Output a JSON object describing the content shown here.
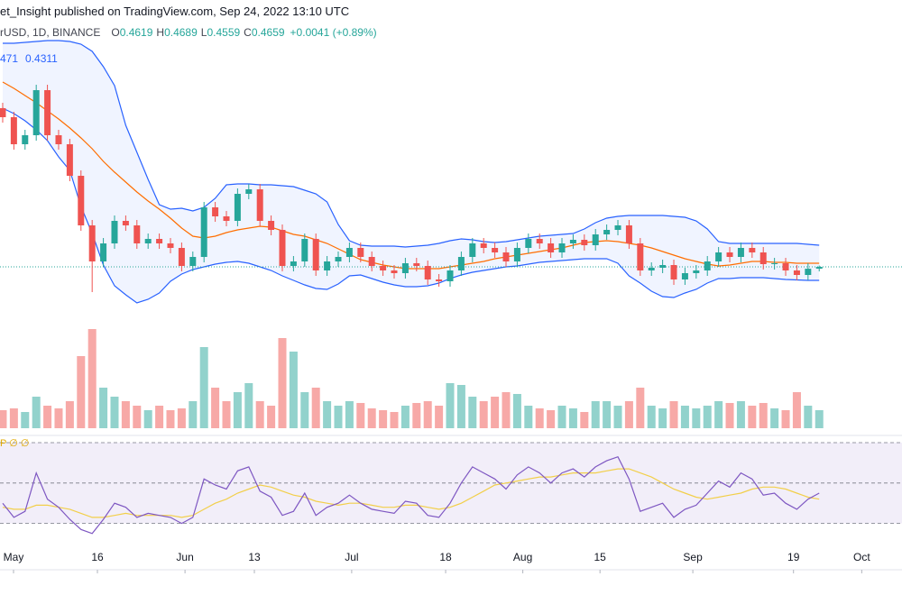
{
  "chart_data": {
    "type": "candlestick",
    "title": "et_Insight published on TradingView.com, Sep 24, 2022 13:10 UTC",
    "symbol": "rUSD, 1D, BINANCE",
    "ohlc_legend": [
      {
        "label": "O",
        "value": 0.4619
      },
      {
        "label": "H",
        "value": 0.4689
      },
      {
        "label": "L",
        "value": 0.4559
      },
      {
        "label": "C",
        "value": 0.4659
      }
    ],
    "change_label": "+0.0041 (+0.89%)",
    "bb_legend": [
      "471",
      "0.4311"
    ],
    "rsi_legend": "P ∅ ∅",
    "up_color": "#26a69a",
    "down_color": "#ef5350",
    "bb_color": "#2962ff",
    "basis_color": "#ff6d00",
    "rsi_color": "#7e57c2",
    "rsi_ma_color": "#f2cf4a",
    "open": [
      0.818,
      0.798,
      0.738,
      0.758,
      0.858,
      0.758,
      0.738,
      0.668,
      0.558,
      0.478,
      0.518,
      0.568,
      0.558,
      0.518,
      0.528,
      0.518,
      0.508,
      0.468,
      0.488,
      0.598,
      0.578,
      0.568,
      0.628,
      0.638,
      0.568,
      0.548,
      0.468,
      0.478,
      0.528,
      0.458,
      0.478,
      0.488,
      0.508,
      0.488,
      0.468,
      0.458,
      0.452,
      0.474,
      0.468,
      0.438,
      0.434,
      0.458,
      0.488,
      0.518,
      0.508,
      0.498,
      0.478,
      0.508,
      0.528,
      0.518,
      0.498,
      0.518,
      0.526,
      0.514,
      0.538,
      0.548,
      0.558,
      0.518,
      0.458,
      0.464,
      0.47,
      0.438,
      0.452,
      0.458,
      0.478,
      0.498,
      0.488,
      0.508,
      0.498,
      0.472,
      0.474,
      0.458,
      0.448,
      0.4619
    ],
    "high": [
      0.83,
      0.81,
      0.77,
      0.87,
      0.87,
      0.77,
      0.75,
      0.68,
      0.57,
      0.53,
      0.58,
      0.58,
      0.57,
      0.54,
      0.54,
      0.53,
      0.52,
      0.5,
      0.61,
      0.61,
      0.59,
      0.64,
      0.65,
      0.65,
      0.58,
      0.56,
      0.49,
      0.54,
      0.54,
      0.49,
      0.5,
      0.52,
      0.52,
      0.5,
      0.48,
      0.47,
      0.486,
      0.486,
      0.48,
      0.45,
      0.47,
      0.5,
      0.53,
      0.53,
      0.52,
      0.51,
      0.52,
      0.54,
      0.54,
      0.53,
      0.53,
      0.538,
      0.538,
      0.55,
      0.56,
      0.57,
      0.57,
      0.53,
      0.476,
      0.482,
      0.482,
      0.464,
      0.47,
      0.49,
      0.51,
      0.51,
      0.52,
      0.52,
      0.51,
      0.486,
      0.486,
      0.47,
      0.474,
      0.4689
    ],
    "low": [
      0.786,
      0.726,
      0.726,
      0.746,
      0.746,
      0.726,
      0.656,
      0.546,
      0.41,
      0.466,
      0.506,
      0.546,
      0.506,
      0.506,
      0.506,
      0.496,
      0.456,
      0.456,
      0.476,
      0.566,
      0.556,
      0.556,
      0.616,
      0.556,
      0.536,
      0.456,
      0.456,
      0.466,
      0.446,
      0.446,
      0.466,
      0.476,
      0.476,
      0.456,
      0.446,
      0.44,
      0.44,
      0.456,
      0.426,
      0.422,
      0.422,
      0.446,
      0.476,
      0.496,
      0.486,
      0.466,
      0.466,
      0.496,
      0.506,
      0.486,
      0.486,
      0.506,
      0.502,
      0.502,
      0.526,
      0.536,
      0.506,
      0.446,
      0.446,
      0.452,
      0.426,
      0.426,
      0.44,
      0.446,
      0.466,
      0.476,
      0.476,
      0.486,
      0.46,
      0.46,
      0.446,
      0.436,
      0.436,
      0.4559
    ],
    "close": [
      0.798,
      0.738,
      0.758,
      0.858,
      0.758,
      0.738,
      0.668,
      0.558,
      0.478,
      0.518,
      0.568,
      0.558,
      0.518,
      0.528,
      0.518,
      0.508,
      0.468,
      0.488,
      0.598,
      0.578,
      0.568,
      0.628,
      0.638,
      0.568,
      0.548,
      0.468,
      0.478,
      0.528,
      0.458,
      0.478,
      0.488,
      0.508,
      0.488,
      0.468,
      0.458,
      0.452,
      0.474,
      0.468,
      0.438,
      0.434,
      0.458,
      0.488,
      0.518,
      0.508,
      0.498,
      0.478,
      0.508,
      0.528,
      0.518,
      0.498,
      0.518,
      0.526,
      0.514,
      0.538,
      0.548,
      0.558,
      0.518,
      0.458,
      0.464,
      0.47,
      0.438,
      0.452,
      0.458,
      0.478,
      0.498,
      0.488,
      0.508,
      0.498,
      0.472,
      0.474,
      0.458,
      0.448,
      0.4619,
      0.4659
    ],
    "bb_upper": [
      0.962,
      0.962,
      0.964,
      0.966,
      0.968,
      0.968,
      0.966,
      0.96,
      0.944,
      0.91,
      0.868,
      0.78,
      0.72,
      0.66,
      0.604,
      0.594,
      0.596,
      0.59,
      0.598,
      0.618,
      0.648,
      0.65,
      0.65,
      0.648,
      0.648,
      0.646,
      0.644,
      0.636,
      0.628,
      0.61,
      0.56,
      0.524,
      0.514,
      0.512,
      0.512,
      0.512,
      0.51,
      0.512,
      0.514,
      0.518,
      0.524,
      0.528,
      0.526,
      0.522,
      0.52,
      0.522,
      0.526,
      0.53,
      0.534,
      0.536,
      0.538,
      0.54,
      0.55,
      0.564,
      0.574,
      0.578,
      0.58,
      0.58,
      0.58,
      0.58,
      0.578,
      0.576,
      0.568,
      0.55,
      0.522,
      0.518,
      0.518,
      0.518,
      0.518,
      0.518,
      0.518,
      0.518,
      0.516,
      0.514
    ],
    "bb_basis": [
      0.876,
      0.862,
      0.846,
      0.83,
      0.812,
      0.794,
      0.774,
      0.752,
      0.728,
      0.7,
      0.676,
      0.654,
      0.632,
      0.612,
      0.594,
      0.574,
      0.552,
      0.534,
      0.53,
      0.534,
      0.542,
      0.548,
      0.552,
      0.556,
      0.554,
      0.546,
      0.538,
      0.534,
      0.526,
      0.518,
      0.506,
      0.494,
      0.482,
      0.476,
      0.47,
      0.466,
      0.462,
      0.462,
      0.462,
      0.462,
      0.466,
      0.47,
      0.474,
      0.478,
      0.484,
      0.488,
      0.492,
      0.496,
      0.5,
      0.504,
      0.508,
      0.514,
      0.52,
      0.522,
      0.524,
      0.522,
      0.518,
      0.514,
      0.508,
      0.5,
      0.492,
      0.484,
      0.478,
      0.472,
      0.468,
      0.47,
      0.474,
      0.478,
      0.478,
      0.476,
      0.476,
      0.474,
      0.474,
      0.474
    ],
    "bb_lower": [
      0.818,
      0.806,
      0.79,
      0.77,
      0.746,
      0.71,
      0.68,
      0.6,
      0.54,
      0.47,
      0.424,
      0.404,
      0.386,
      0.394,
      0.408,
      0.434,
      0.45,
      0.46,
      0.466,
      0.472,
      0.476,
      0.478,
      0.474,
      0.466,
      0.458,
      0.446,
      0.436,
      0.426,
      0.418,
      0.416,
      0.428,
      0.446,
      0.448,
      0.44,
      0.432,
      0.426,
      0.422,
      0.422,
      0.424,
      0.43,
      0.44,
      0.448,
      0.454,
      0.458,
      0.462,
      0.466,
      0.468,
      0.472,
      0.476,
      0.478,
      0.48,
      0.482,
      0.484,
      0.484,
      0.484,
      0.474,
      0.446,
      0.43,
      0.412,
      0.4,
      0.398,
      0.408,
      0.416,
      0.43,
      0.44,
      0.44,
      0.442,
      0.442,
      0.442,
      0.44,
      0.438,
      0.437,
      0.436,
      0.436
    ],
    "ylim": [
      0.378,
      0.998
    ],
    "volume": [
      20,
      22,
      18,
      35,
      25,
      22,
      30,
      80,
      110,
      45,
      35,
      30,
      25,
      20,
      25,
      20,
      22,
      30,
      90,
      45,
      30,
      40,
      50,
      30,
      25,
      100,
      85,
      40,
      45,
      30,
      25,
      30,
      28,
      22,
      20,
      18,
      25,
      28,
      30,
      25,
      50,
      48,
      35,
      30,
      35,
      40,
      38,
      25,
      22,
      20,
      25,
      22,
      18,
      30,
      30,
      25,
      30,
      45,
      25,
      22,
      30,
      25,
      22,
      25,
      30,
      28,
      30,
      25,
      28,
      22,
      20,
      40,
      25,
      20
    ],
    "volume_ylim": [
      0,
      115
    ],
    "rsi": [
      40,
      33,
      36,
      55,
      42,
      38,
      32,
      27,
      25,
      32,
      40,
      38,
      33,
      35,
      34,
      33,
      30,
      33,
      52,
      49,
      47,
      56,
      58,
      46,
      43,
      34,
      36,
      45,
      34,
      38,
      40,
      44,
      40,
      37,
      36,
      35,
      41,
      40,
      34,
      33,
      40,
      50,
      58,
      55,
      52,
      47,
      54,
      58,
      55,
      50,
      55,
      57,
      53,
      58,
      61,
      63,
      52,
      36,
      38,
      40,
      33,
      37,
      39,
      45,
      51,
      48,
      55,
      52,
      44,
      45,
      40,
      37,
      42,
      45
    ],
    "rsi_ma": [
      38,
      37,
      37,
      39,
      39,
      38,
      37,
      35,
      33,
      33,
      34,
      35,
      34,
      34,
      34,
      34,
      33,
      34,
      37,
      40,
      42,
      45,
      47,
      49,
      48,
      46,
      44,
      43,
      41,
      40,
      39,
      40,
      40,
      39,
      38,
      38,
      39,
      39,
      38,
      37,
      38,
      40,
      43,
      46,
      49,
      50,
      51,
      52,
      53,
      53,
      54,
      55,
      55,
      55,
      56,
      57,
      57,
      55,
      53,
      50,
      47,
      45,
      43,
      42,
      43,
      44,
      45,
      47,
      48,
      48,
      47,
      45,
      43,
      42
    ],
    "rsi_ylim": [
      16,
      74
    ],
    "rsi_levels": [
      70,
      50,
      30
    ],
    "xlim": [
      -0.24,
      80.4
    ],
    "xticks": [
      {
        "value": 0.97,
        "label": "May"
      },
      {
        "value": 8.47,
        "label": "16"
      },
      {
        "value": 16.3,
        "label": "Jun"
      },
      {
        "value": 22.5,
        "label": "13"
      },
      {
        "value": 31.2,
        "label": "Jul"
      },
      {
        "value": 39.6,
        "label": "18"
      },
      {
        "value": 46.5,
        "label": "Aug"
      },
      {
        "value": 53.4,
        "label": "15"
      },
      {
        "value": 61.7,
        "label": "Sep"
      },
      {
        "value": 70.7,
        "label": "19"
      },
      {
        "value": 76.8,
        "label": "Oct"
      }
    ]
  }
}
